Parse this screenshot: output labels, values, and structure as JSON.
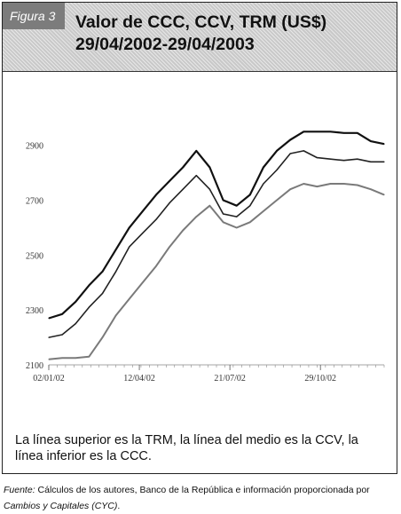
{
  "figure": {
    "badge": "Figura 3",
    "title_line1": "Valor de CCC, CCV, TRM (US$)",
    "title_line2": "29/04/2002-29/04/2003",
    "caption": "La línea superior es la TRM, la línea del medio es la CCV, la línea inferior es la CCC.",
    "source_label": "Fuente:",
    "source_text_a": " Cálculos de los autores, Banco de la República e información proporcionada por ",
    "source_text_b": "Cambios y Capitales (CYC)",
    "source_text_c": "."
  },
  "chart_data": {
    "type": "line",
    "title": "",
    "xlabel": "",
    "ylabel": "",
    "ylim": [
      2100,
      2980
    ],
    "xlim": [
      0,
      1
    ],
    "yticks": [
      2100,
      2300,
      2500,
      2700,
      2900
    ],
    "xticks": [
      {
        "label": "02/01/02",
        "x": 0.0
      },
      {
        "label": "12/04/02",
        "x": 0.27
      },
      {
        "label": "21/07/02",
        "x": 0.54
      },
      {
        "label": "29/10/02",
        "x": 0.81
      }
    ],
    "grid": false,
    "legend": "none",
    "colors": {
      "trm": "#111111",
      "ccv": "#222222",
      "ccc": "#7a7a7a"
    },
    "series": [
      {
        "key": "trm",
        "x": [
          0.0,
          0.04,
          0.08,
          0.12,
          0.16,
          0.2,
          0.24,
          0.28,
          0.32,
          0.36,
          0.4,
          0.44,
          0.48,
          0.52,
          0.56,
          0.6,
          0.64,
          0.68,
          0.72,
          0.76,
          0.8,
          0.84,
          0.88,
          0.92,
          0.96,
          1.0
        ],
        "values": [
          2270,
          2285,
          2330,
          2390,
          2440,
          2520,
          2600,
          2660,
          2720,
          2770,
          2820,
          2880,
          2820,
          2700,
          2680,
          2720,
          2820,
          2880,
          2920,
          2950,
          2950,
          2950,
          2945,
          2945,
          2915,
          2905
        ]
      },
      {
        "key": "ccv",
        "x": [
          0.0,
          0.04,
          0.08,
          0.12,
          0.16,
          0.2,
          0.24,
          0.28,
          0.32,
          0.36,
          0.4,
          0.44,
          0.48,
          0.52,
          0.56,
          0.6,
          0.64,
          0.68,
          0.72,
          0.76,
          0.8,
          0.84,
          0.88,
          0.92,
          0.96,
          1.0
        ],
        "values": [
          2200,
          2210,
          2250,
          2310,
          2360,
          2440,
          2530,
          2580,
          2630,
          2690,
          2740,
          2790,
          2740,
          2650,
          2640,
          2680,
          2760,
          2810,
          2870,
          2880,
          2855,
          2850,
          2845,
          2850,
          2840,
          2840
        ]
      },
      {
        "key": "ccc",
        "x": [
          0.0,
          0.04,
          0.08,
          0.12,
          0.16,
          0.2,
          0.24,
          0.28,
          0.32,
          0.36,
          0.4,
          0.44,
          0.48,
          0.52,
          0.56,
          0.6,
          0.64,
          0.68,
          0.72,
          0.76,
          0.8,
          0.84,
          0.88,
          0.92,
          0.96,
          1.0
        ],
        "values": [
          2120,
          2125,
          2125,
          2130,
          2200,
          2280,
          2340,
          2400,
          2460,
          2530,
          2590,
          2640,
          2680,
          2620,
          2600,
          2620,
          2660,
          2700,
          2740,
          2760,
          2750,
          2760,
          2760,
          2755,
          2740,
          2720
        ]
      }
    ]
  }
}
